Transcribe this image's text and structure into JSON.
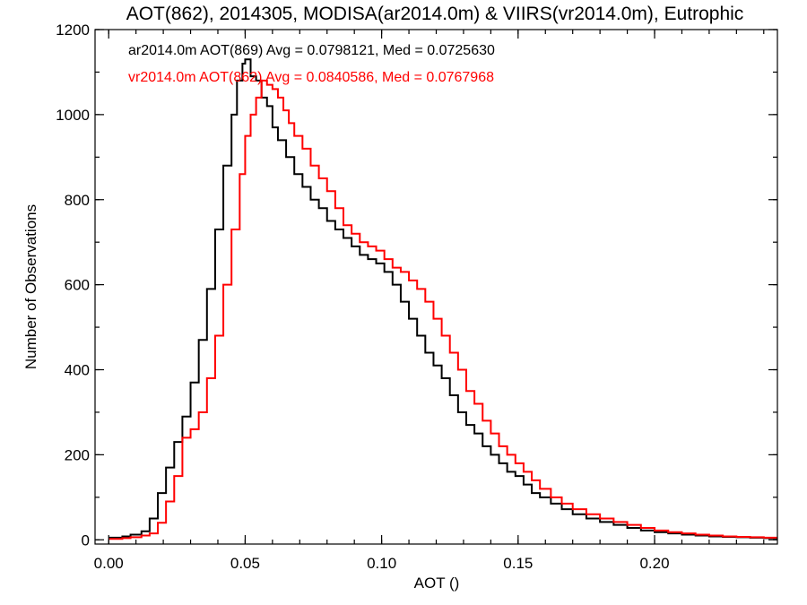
{
  "chart_data": {
    "type": "line",
    "title": "AOT(862), 2014305, MODISA(ar2014.0m) & VIIRS(vr2014.0m), Eutrophic",
    "xlabel": "AOT ()",
    "ylabel": "Number of Observations",
    "xlim": [
      -0.005,
      0.245
    ],
    "ylim": [
      -10,
      1200
    ],
    "x_ticks": [
      0.0,
      0.05,
      0.1,
      0.15,
      0.2
    ],
    "x_tick_labels": [
      "0.00",
      "0.05",
      "0.10",
      "0.15",
      "0.20"
    ],
    "y_ticks": [
      0,
      200,
      400,
      600,
      800,
      1000,
      1200
    ],
    "y_tick_labels": [
      "0",
      "200",
      "400",
      "600",
      "800",
      "1000",
      "1200"
    ],
    "grid": false,
    "legend_placement": "top-left",
    "series": [
      {
        "name": "ar2014.0m AOT(869) Avg = 0.0798121, Med = 0.0725630",
        "color": "#000000",
        "style": "step",
        "points": [
          [
            0.0,
            5
          ],
          [
            0.005,
            8
          ],
          [
            0.008,
            12
          ],
          [
            0.012,
            20
          ],
          [
            0.015,
            50
          ],
          [
            0.018,
            110
          ],
          [
            0.021,
            170
          ],
          [
            0.024,
            230
          ],
          [
            0.027,
            290
          ],
          [
            0.03,
            370
          ],
          [
            0.033,
            470
          ],
          [
            0.036,
            590
          ],
          [
            0.039,
            730
          ],
          [
            0.042,
            880
          ],
          [
            0.045,
            1000
          ],
          [
            0.047,
            1080
          ],
          [
            0.049,
            1120
          ],
          [
            0.05,
            1130
          ],
          [
            0.052,
            1090
          ],
          [
            0.054,
            1080
          ],
          [
            0.056,
            1040
          ],
          [
            0.058,
            1020
          ],
          [
            0.06,
            970
          ],
          [
            0.062,
            940
          ],
          [
            0.065,
            900
          ],
          [
            0.068,
            860
          ],
          [
            0.071,
            830
          ],
          [
            0.074,
            800
          ],
          [
            0.077,
            780
          ],
          [
            0.08,
            750
          ],
          [
            0.083,
            730
          ],
          [
            0.086,
            710
          ],
          [
            0.089,
            690
          ],
          [
            0.092,
            670
          ],
          [
            0.095,
            660
          ],
          [
            0.098,
            650
          ],
          [
            0.101,
            630
          ],
          [
            0.104,
            600
          ],
          [
            0.107,
            560
          ],
          [
            0.11,
            520
          ],
          [
            0.113,
            480
          ],
          [
            0.116,
            440
          ],
          [
            0.119,
            410
          ],
          [
            0.122,
            380
          ],
          [
            0.125,
            340
          ],
          [
            0.128,
            300
          ],
          [
            0.131,
            270
          ],
          [
            0.134,
            250
          ],
          [
            0.137,
            220
          ],
          [
            0.14,
            200
          ],
          [
            0.143,
            180
          ],
          [
            0.146,
            160
          ],
          [
            0.149,
            150
          ],
          [
            0.152,
            130
          ],
          [
            0.155,
            110
          ],
          [
            0.158,
            100
          ],
          [
            0.162,
            85
          ],
          [
            0.166,
            72
          ],
          [
            0.17,
            60
          ],
          [
            0.175,
            50
          ],
          [
            0.18,
            42
          ],
          [
            0.185,
            35
          ],
          [
            0.19,
            28
          ],
          [
            0.195,
            22
          ],
          [
            0.2,
            18
          ],
          [
            0.205,
            15
          ],
          [
            0.21,
            12
          ],
          [
            0.215,
            10
          ],
          [
            0.22,
            8
          ],
          [
            0.225,
            7
          ],
          [
            0.23,
            6
          ],
          [
            0.235,
            5
          ],
          [
            0.24,
            4
          ],
          [
            0.245,
            3
          ]
        ]
      },
      {
        "name": "vr2014.0m AOT(862) Avg = 0.0840586, Med = 0.0767968",
        "color": "#ff0000",
        "style": "step",
        "points": [
          [
            0.0,
            2
          ],
          [
            0.005,
            4
          ],
          [
            0.008,
            6
          ],
          [
            0.012,
            10
          ],
          [
            0.015,
            15
          ],
          [
            0.018,
            40
          ],
          [
            0.021,
            90
          ],
          [
            0.024,
            150
          ],
          [
            0.027,
            240
          ],
          [
            0.03,
            260
          ],
          [
            0.033,
            300
          ],
          [
            0.036,
            380
          ],
          [
            0.039,
            480
          ],
          [
            0.042,
            600
          ],
          [
            0.045,
            730
          ],
          [
            0.048,
            860
          ],
          [
            0.05,
            950
          ],
          [
            0.052,
            1000
          ],
          [
            0.054,
            1040
          ],
          [
            0.056,
            1080
          ],
          [
            0.058,
            1070
          ],
          [
            0.06,
            1060
          ],
          [
            0.062,
            1040
          ],
          [
            0.064,
            1010
          ],
          [
            0.066,
            980
          ],
          [
            0.068,
            950
          ],
          [
            0.071,
            920
          ],
          [
            0.074,
            880
          ],
          [
            0.077,
            850
          ],
          [
            0.08,
            820
          ],
          [
            0.083,
            780
          ],
          [
            0.086,
            740
          ],
          [
            0.089,
            720
          ],
          [
            0.092,
            700
          ],
          [
            0.095,
            690
          ],
          [
            0.098,
            680
          ],
          [
            0.101,
            660
          ],
          [
            0.104,
            640
          ],
          [
            0.107,
            630
          ],
          [
            0.11,
            610
          ],
          [
            0.113,
            590
          ],
          [
            0.116,
            560
          ],
          [
            0.119,
            520
          ],
          [
            0.122,
            480
          ],
          [
            0.125,
            440
          ],
          [
            0.128,
            400
          ],
          [
            0.131,
            350
          ],
          [
            0.134,
            320
          ],
          [
            0.137,
            280
          ],
          [
            0.14,
            250
          ],
          [
            0.143,
            220
          ],
          [
            0.146,
            200
          ],
          [
            0.149,
            180
          ],
          [
            0.152,
            160
          ],
          [
            0.155,
            140
          ],
          [
            0.158,
            120
          ],
          [
            0.162,
            100
          ],
          [
            0.166,
            85
          ],
          [
            0.17,
            72
          ],
          [
            0.175,
            60
          ],
          [
            0.18,
            50
          ],
          [
            0.185,
            42
          ],
          [
            0.19,
            35
          ],
          [
            0.195,
            28
          ],
          [
            0.2,
            22
          ],
          [
            0.205,
            18
          ],
          [
            0.21,
            15
          ],
          [
            0.215,
            12
          ],
          [
            0.22,
            10
          ],
          [
            0.225,
            8
          ],
          [
            0.23,
            7
          ],
          [
            0.235,
            6
          ],
          [
            0.24,
            5
          ],
          [
            0.245,
            4
          ]
        ]
      }
    ]
  }
}
